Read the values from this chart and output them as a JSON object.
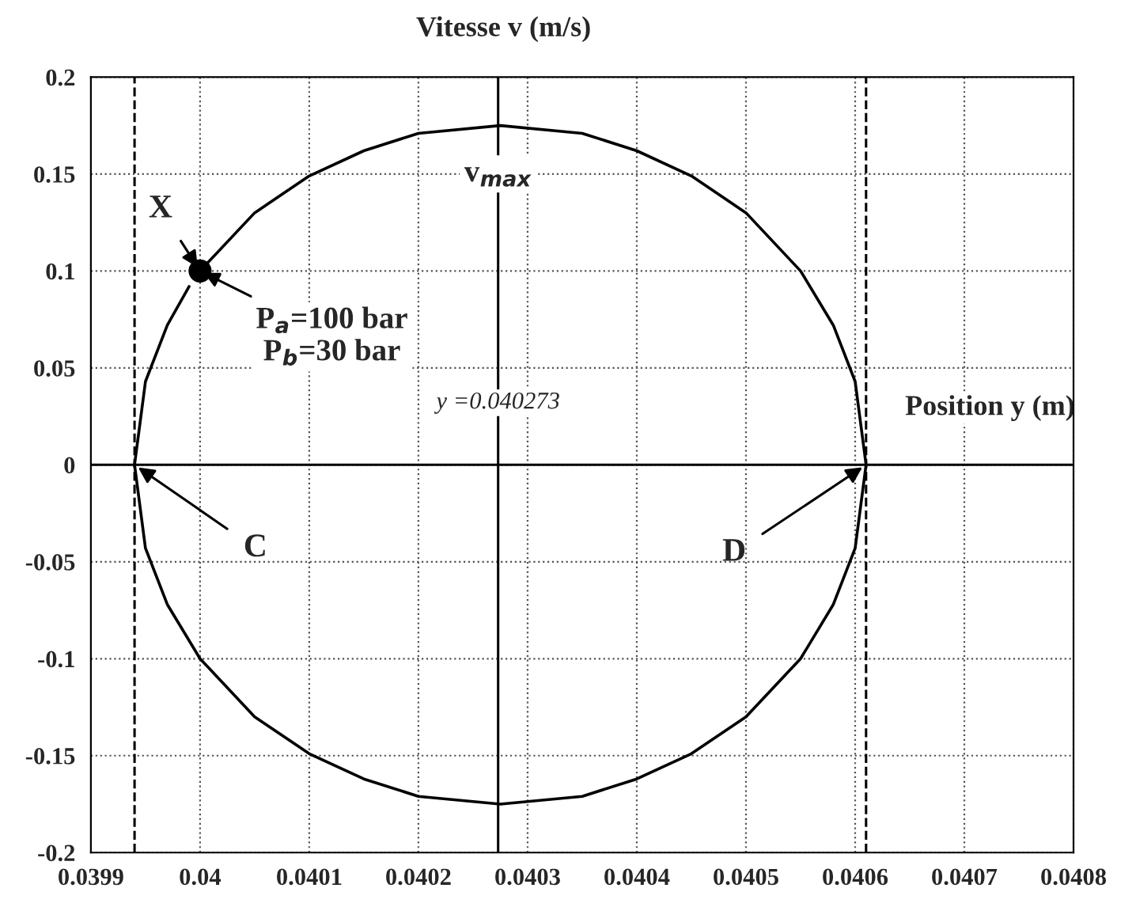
{
  "chart_data": {
    "type": "line",
    "xlabel": "Position y (m)",
    "ylabel": "Vitesse v (m/s)",
    "series": [
      {
        "color": "#000000",
        "x": [
          0.04,
          0.04005,
          0.0401,
          0.04015,
          0.0402,
          0.040275,
          0.04035,
          0.0404,
          0.04045,
          0.0405,
          0.04055,
          0.04058,
          0.0406,
          0.04061,
          0.0406,
          0.04058,
          0.04055,
          0.0405,
          0.04045,
          0.0404,
          0.04035,
          0.040275,
          0.0402,
          0.04015,
          0.0401,
          0.04005,
          0.04,
          0.03997,
          0.03995,
          0.03994,
          0.03995,
          0.03997,
          0.03999
        ],
        "values": [
          0.1,
          0.13,
          0.149,
          0.162,
          0.171,
          0.175,
          0.171,
          0.162,
          0.149,
          0.13,
          0.1,
          0.072,
          0.043,
          0,
          -0.043,
          -0.072,
          -0.1,
          -0.13,
          -0.149,
          -0.162,
          -0.171,
          -0.175,
          -0.171,
          -0.162,
          -0.149,
          -0.13,
          -0.1,
          -0.072,
          -0.043,
          0,
          0.043,
          0.072,
          0.092
        ]
      },
      {
        "type": "scatter",
        "color": "#000000",
        "marker": "circle",
        "x": [
          0.04
        ],
        "values": [
          0.1
        ]
      }
    ],
    "xlim": [
      0.0399,
      0.0408
    ],
    "xticks": [
      0.0399,
      0.04,
      0.0401,
      0.0402,
      0.0403,
      0.0404,
      0.0405,
      0.0406,
      0.0407,
      0.0408
    ],
    "ylim": [
      -0.2,
      0.2
    ],
    "yticks": [
      -0.2,
      -0.15,
      -0.1,
      -0.05,
      0,
      0.05,
      0.1,
      0.15,
      0.2
    ],
    "grid": true,
    "ref_lines": [
      {
        "axis": "y",
        "value": 0,
        "color": "#000000",
        "line_style": "solid"
      },
      {
        "axis": "x",
        "value": 0.040273,
        "label": "y =0.040273",
        "color": "#000000",
        "line_style": "solid"
      },
      {
        "axis": "x",
        "value": 0.03994,
        "color": "#000000",
        "line_style": "dashed"
      },
      {
        "axis": "x",
        "value": 0.04061,
        "color": "#000000",
        "line_style": "dashed"
      }
    ],
    "annotations": [
      {
        "text": "X",
        "x": 0.04,
        "y": 0.1
      },
      {
        "text": "P$_{a}$=100 bar\nP$_{b}$=30 bar",
        "x": 0.04,
        "y": 0.1
      },
      {
        "text": "v$_{max}$",
        "x": 0.040273,
        "y": 0.175
      },
      {
        "text": "C",
        "x": 0.03994,
        "y": 0
      },
      {
        "text": "D",
        "x": 0.04061,
        "y": 0
      }
    ]
  }
}
